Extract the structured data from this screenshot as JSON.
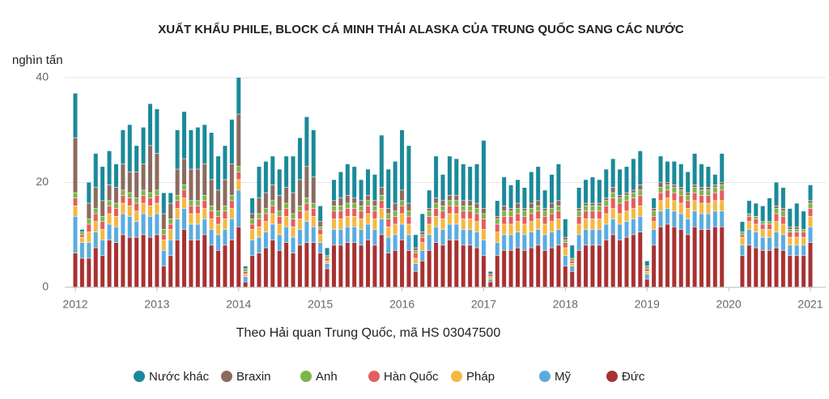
{
  "chart_data": {
    "type": "bar",
    "stacked": true,
    "title": "XUẤT KHẨU PHILE, BLOCK CÁ MINH THÁI ALASKA CỦA TRUNG QUỐC SANG CÁC NƯỚC",
    "y_label": "nghìn tấn",
    "source": "Theo Hải quan Trung Quốc, mã HS 03047500",
    "ylim": [
      0,
      40
    ],
    "yticks": [
      0,
      20,
      40
    ],
    "grid": true,
    "legend": "bottom",
    "categories": [
      "2012",
      null,
      null,
      null,
      null,
      null,
      null,
      null,
      null,
      null,
      null,
      null,
      "2013",
      null,
      null,
      null,
      null,
      null,
      null,
      null,
      null,
      null,
      null,
      null,
      "2014",
      null,
      null,
      null,
      null,
      null,
      null,
      null,
      null,
      null,
      null,
      null,
      "2015",
      null,
      null,
      null,
      null,
      null,
      null,
      null,
      null,
      null,
      null,
      null,
      "2016",
      null,
      null,
      null,
      null,
      null,
      null,
      null,
      null,
      null,
      null,
      null,
      "2017",
      null,
      null,
      null,
      null,
      null,
      null,
      null,
      null,
      null,
      null,
      null,
      "2018",
      null,
      null,
      null,
      null,
      null,
      null,
      null,
      null,
      null,
      null,
      null,
      "2019",
      null,
      null,
      null,
      null,
      null,
      null,
      null,
      null,
      null,
      null,
      null,
      "2020",
      null,
      null,
      null,
      null,
      null,
      null,
      null,
      null,
      null,
      null,
      null,
      "2021"
    ],
    "series": [
      {
        "name": "Nước khác",
        "color": "#1b8a99",
        "values": [
          8.5,
          0.5,
          4,
          6.5,
          6.5,
          6.5,
          4.5,
          6.5,
          9,
          5,
          7,
          8,
          8.5,
          4,
          2,
          7.5,
          9,
          7.5,
          8,
          7.5,
          9,
          6.5,
          6.5,
          8.5,
          7,
          0.5,
          3,
          6,
          6,
          5.5,
          5,
          6,
          7,
          8,
          9.5,
          9,
          3,
          1.5,
          4,
          5,
          6,
          6,
          4,
          5,
          5,
          10,
          7.5,
          8,
          11.5,
          11,
          2.5,
          3.5,
          3.5,
          8,
          5,
          7.5,
          7,
          7,
          6.5,
          7.5,
          13,
          0.5,
          3,
          5.5,
          4.5,
          4.5,
          4,
          6,
          6.5,
          3.5,
          5.5,
          7,
          3.5,
          2.5,
          4,
          4.5,
          5,
          4.5,
          5.5,
          5.5,
          5,
          5,
          6,
          6.5,
          1,
          2,
          5,
          4,
          4.5,
          4.5,
          4,
          6,
          4.5,
          4,
          2,
          5.5,
          0,
          0,
          2,
          2.5,
          2.5,
          3,
          4.5,
          4.5,
          4,
          3.5,
          4.5,
          3.5,
          3
        ]
      },
      {
        "name": "Braxin",
        "color": "#8c6b5f",
        "values": [
          10.5,
          0,
          3,
          4,
          3,
          3,
          3,
          5,
          4,
          5,
          5,
          9,
          7,
          3,
          3,
          5,
          5,
          6,
          6,
          6,
          5,
          4,
          5,
          6,
          10,
          0,
          1,
          3,
          3,
          3,
          3,
          3,
          4,
          5,
          6,
          5,
          1,
          0,
          1,
          1.5,
          1.5,
          1,
          1,
          1,
          1,
          1.5,
          1,
          1.5,
          2,
          1.5,
          0.5,
          0.5,
          0.5,
          1,
          1,
          1,
          1,
          1,
          1,
          1,
          1,
          0,
          0.5,
          1,
          0.5,
          1,
          0.5,
          1,
          1,
          0.5,
          1,
          1,
          0.5,
          0,
          0.5,
          0.5,
          0.5,
          0.5,
          0.5,
          1,
          0.5,
          0.5,
          0.5,
          1,
          0,
          0.5,
          1,
          0.5,
          0.5,
          0.5,
          0.5,
          0.5,
          0.5,
          0.5,
          0.5,
          0.5,
          0,
          0,
          0,
          0,
          0,
          0,
          0,
          0.5,
          0.5,
          0.5,
          0.5,
          0,
          0.5
        ]
      },
      {
        "name": "Anh",
        "color": "#7ab648",
        "values": [
          1,
          0.5,
          1,
          1,
          1,
          1,
          1,
          1,
          1,
          1,
          1,
          1,
          1,
          1,
          1,
          1,
          1,
          1,
          1,
          1,
          1,
          1,
          1,
          1,
          1,
          0.5,
          1,
          1,
          1,
          1,
          1,
          1,
          1,
          1,
          1,
          1,
          0.5,
          0.5,
          1,
          1,
          1,
          1,
          1,
          1,
          1,
          1,
          1,
          1,
          1,
          1,
          0.5,
          0.5,
          1,
          1,
          1,
          1,
          1,
          1,
          1,
          1,
          1,
          0,
          1,
          1,
          1,
          1,
          1,
          1,
          1,
          1,
          1,
          1,
          0.5,
          0.5,
          1,
          1,
          1,
          1,
          1,
          1,
          1,
          1,
          1,
          1,
          0.5,
          1,
          1,
          1,
          1,
          1,
          1,
          1,
          1,
          1,
          1,
          1,
          0,
          0,
          0.5,
          0.5,
          0.5,
          0.5,
          0.5,
          1,
          1,
          0.5,
          0.5,
          0.5,
          1
        ]
      },
      {
        "name": "Hàn Quốc",
        "color": "#e35f5f",
        "values": [
          1.5,
          0.5,
          1.5,
          1.5,
          1.5,
          1.5,
          1.5,
          1.5,
          1.5,
          1.5,
          1.5,
          1.5,
          1.5,
          1,
          1,
          1.5,
          1.5,
          1.5,
          1.5,
          1.5,
          1.5,
          1.5,
          1.5,
          1.5,
          1.5,
          0.5,
          1,
          1.5,
          1.5,
          1.5,
          1.5,
          1.5,
          1.5,
          1.5,
          1.5,
          1.5,
          1,
          0.5,
          1.5,
          1.5,
          1.5,
          1.5,
          1.5,
          1.5,
          1.5,
          1.5,
          1.5,
          1.5,
          1.5,
          1.5,
          1,
          1,
          1.5,
          1.5,
          1.5,
          1.5,
          1.5,
          1.5,
          1.5,
          1.5,
          2,
          0.5,
          1.5,
          1.5,
          1.5,
          1.5,
          1.5,
          1.5,
          1.5,
          1.5,
          1.5,
          1.5,
          1,
          0.5,
          1.5,
          1.5,
          1.5,
          1.5,
          1.5,
          2,
          2,
          2,
          2,
          2,
          0.5,
          1,
          1.5,
          1.5,
          1.5,
          1.5,
          1.5,
          1.5,
          1.5,
          1.5,
          1.5,
          2,
          0,
          0,
          0.5,
          1,
          1,
          1,
          1,
          1.5,
          1.5,
          1,
          1,
          1,
          1.5
        ]
      },
      {
        "name": "Pháp",
        "color": "#f4b942",
        "values": [
          2,
          1,
          2,
          2,
          2,
          2,
          2,
          2,
          2,
          2,
          2,
          2,
          2,
          2,
          2,
          2,
          2,
          2,
          2,
          2,
          2,
          2,
          2,
          2,
          2,
          0.5,
          2,
          2,
          2,
          2,
          2,
          2,
          2,
          2,
          2,
          2,
          1.5,
          0.5,
          2,
          2,
          2,
          2,
          2,
          2,
          2,
          2,
          2,
          2,
          2,
          2,
          1,
          1.5,
          2,
          2,
          2,
          2,
          2,
          2,
          2,
          2,
          2,
          0.5,
          2,
          2,
          2,
          2,
          2,
          2,
          2,
          2,
          2,
          2,
          1.5,
          0.5,
          2,
          2,
          2,
          2,
          2,
          2,
          2,
          2,
          2,
          2,
          0.5,
          1.5,
          2,
          2,
          2,
          2,
          2,
          2,
          2,
          2,
          2,
          2,
          0,
          0,
          1.5,
          1.5,
          1.5,
          1.5,
          1.5,
          2,
          2,
          1.5,
          1.5,
          1.5,
          2
        ]
      },
      {
        "name": "Mỹ",
        "color": "#5aace0",
        "values": [
          7,
          3,
          3,
          3,
          3,
          3,
          3,
          4,
          4,
          3,
          4,
          4,
          4,
          3,
          3,
          4,
          4,
          3,
          3,
          3,
          3,
          3,
          3,
          4,
          7,
          1,
          3,
          3,
          3,
          3,
          3,
          3,
          3,
          3,
          4,
          3,
          2,
          1,
          3,
          3,
          3,
          3,
          3,
          3,
          3,
          3,
          3,
          3,
          3,
          3,
          1.5,
          2,
          3,
          3,
          3,
          3,
          3,
          3,
          3,
          3,
          3,
          0.5,
          2.5,
          3,
          3,
          3,
          3,
          3,
          3,
          3,
          3,
          3,
          2,
          1,
          3,
          3,
          3,
          3,
          3,
          3,
          3,
          3,
          3,
          3,
          1,
          3,
          3,
          3,
          3,
          3,
          3,
          3,
          3,
          3,
          3,
          3,
          0,
          0,
          2,
          3,
          3,
          2.5,
          2.5,
          3,
          3,
          2,
          2,
          2,
          3
        ]
      },
      {
        "name": "Đức",
        "color": "#a83232",
        "values": [
          6.5,
          5.5,
          5.5,
          7.5,
          6,
          9,
          8.5,
          10,
          9.5,
          9.5,
          10,
          9.5,
          10,
          4,
          6,
          9,
          11,
          9,
          9,
          10,
          8,
          7,
          8,
          9,
          11.5,
          1,
          6,
          6.5,
          7.5,
          9,
          7,
          8.5,
          6.5,
          8,
          8.5,
          8.5,
          6.5,
          3.5,
          8,
          8,
          8.5,
          8.5,
          8,
          9,
          8,
          10,
          6.5,
          7,
          9,
          7,
          3,
          5,
          7,
          8.5,
          8,
          9,
          9,
          8,
          8,
          7.5,
          6,
          1,
          6,
          7,
          7,
          7.5,
          7,
          7.5,
          8,
          7,
          7.5,
          8,
          4,
          3,
          7,
          8,
          8,
          8,
          9,
          10,
          9,
          9.5,
          10,
          10.5,
          1.5,
          8,
          11.5,
          12,
          11.5,
          11,
          10,
          11.5,
          11,
          11,
          11.5,
          11.5,
          0,
          0,
          6,
          8,
          7.5,
          7,
          7,
          7.5,
          7,
          6,
          6,
          6,
          8.5
        ]
      }
    ]
  }
}
